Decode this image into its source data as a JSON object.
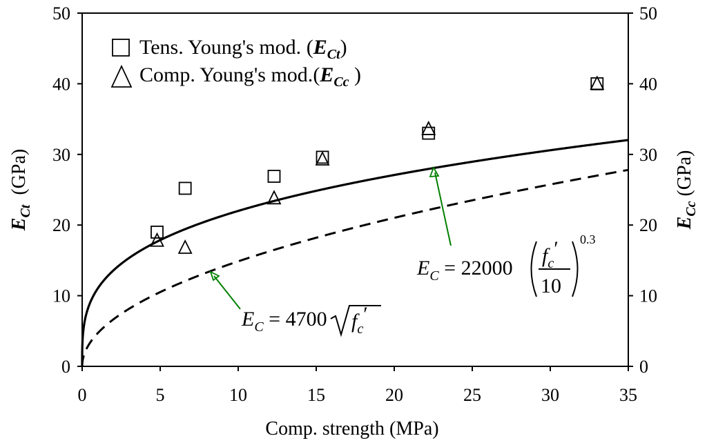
{
  "chart_data": {
    "type": "scatter",
    "xlabel": "Comp. strength  (MPa)",
    "ylabel_left": {
      "symbol": "E",
      "sub": "Ct",
      "unit": "(GPa)"
    },
    "ylabel_right": {
      "symbol": "E",
      "sub": "Cc",
      "unit": "(GPa)"
    },
    "xlim": [
      0,
      35
    ],
    "ylim": [
      0,
      50
    ],
    "x_ticks": [
      "0",
      "5",
      "10",
      "15",
      "20",
      "25",
      "30",
      "35"
    ],
    "y_ticks": [
      "0",
      "10",
      "20",
      "30",
      "40",
      "50"
    ],
    "series": [
      {
        "name": "Tens. Young's mod.",
        "legend_symbol": "E",
        "legend_sub": "Ct",
        "marker": "square",
        "x": [
          4.8,
          6.6,
          12.3,
          15.4,
          22.2,
          33.0
        ],
        "y": [
          19.0,
          25.2,
          26.9,
          29.6,
          33.0,
          40.0
        ]
      },
      {
        "name": "Comp. Young's mod.",
        "legend_symbol": "E",
        "legend_sub": "Cc",
        "marker": "triangle",
        "x": [
          4.8,
          6.6,
          12.3,
          15.4,
          22.2,
          33.0
        ],
        "y": [
          17.8,
          16.8,
          23.8,
          29.3,
          33.6,
          40.0
        ]
      }
    ],
    "curves": [
      {
        "name": "E_C = 22000 (f'c/10)^0.3",
        "style": "solid",
        "formula": "22000*(x/10)^0.3/1000"
      },
      {
        "name": "E_C = 4700 sqrt(f'c)",
        "style": "dashed",
        "formula": "4700*sqrt(x)/1000"
      }
    ],
    "annotations": [
      {
        "id": "eq-aci",
        "lhs_symbol": "E",
        "lhs_sub": "C",
        "equals": "=",
        "coef": "4700",
        "radicand": "f",
        "radicand_sub": "c",
        "prime": "′",
        "arrow_target_x": 8.4,
        "color": "#008000"
      },
      {
        "id": "eq-ec2",
        "lhs_symbol": "E",
        "lhs_sub": "C",
        "equals": "=",
        "coef": "22000",
        "numerator": "f",
        "numerator_sub": "c",
        "prime": "′",
        "denominator": "10",
        "exponent": "0.3",
        "arrow_target_x": 22.8,
        "color": "#008000"
      }
    ]
  }
}
